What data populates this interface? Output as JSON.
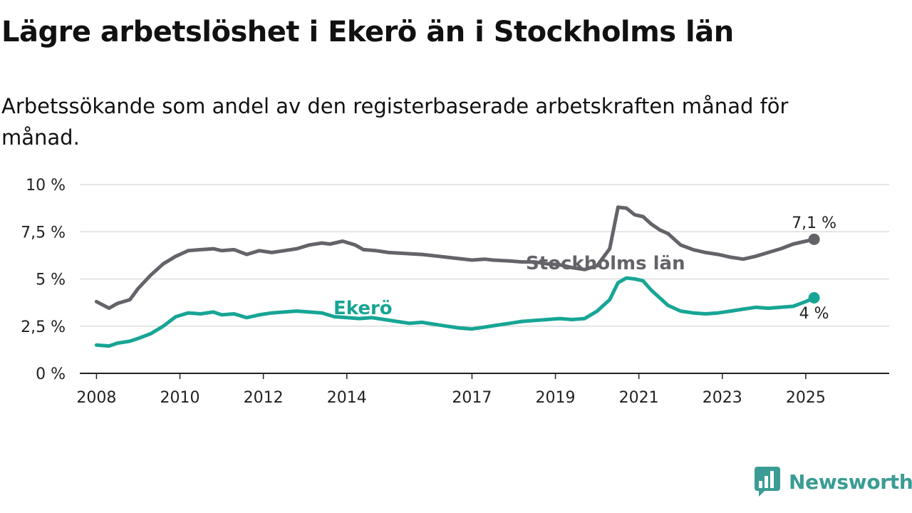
{
  "title": "Lägre arbetslöshet i Ekerö än i Stockholms län",
  "subtitle": "Arbetssökande som andel av den registerbaserade arbetskraften månad för månad.",
  "brand": {
    "name": "Newsworthy",
    "icon": "newsworthy-logo-icon",
    "color": "#3a9c94"
  },
  "chart_data": {
    "type": "line",
    "title": "Lägre arbetslöshet i Ekerö än i Stockholms län",
    "ylabel": "",
    "xlabel": "",
    "ylim": [
      0,
      10
    ],
    "xlim": [
      2007.6,
      2027.0
    ],
    "grid": true,
    "x_ticks": [
      {
        "value": 2008,
        "label": "2008"
      },
      {
        "value": 2010,
        "label": "2010"
      },
      {
        "value": 2012,
        "label": "2012"
      },
      {
        "value": 2014,
        "label": "2014"
      },
      {
        "value": 2017,
        "label": "2017"
      },
      {
        "value": 2019,
        "label": "2019"
      },
      {
        "value": 2021,
        "label": "2021"
      },
      {
        "value": 2023,
        "label": "2023"
      },
      {
        "value": 2025,
        "label": "2025"
      }
    ],
    "y_ticks": [
      {
        "value": 0,
        "label": "0 %"
      },
      {
        "value": 2.5,
        "label": "2,5 %"
      },
      {
        "value": 5,
        "label": "5 %"
      },
      {
        "value": 7.5,
        "label": "7,5 %"
      },
      {
        "value": 10,
        "label": "10 %"
      }
    ],
    "series": [
      {
        "name": "Stockholms län",
        "color": "#636369",
        "end_label": "7,1 %",
        "x": [
          2008.0,
          2008.3,
          2008.5,
          2008.8,
          2009.0,
          2009.3,
          2009.6,
          2009.9,
          2010.2,
          2010.5,
          2010.8,
          2011.0,
          2011.3,
          2011.6,
          2011.9,
          2012.2,
          2012.5,
          2012.8,
          2013.1,
          2013.4,
          2013.6,
          2013.9,
          2014.2,
          2014.4,
          2014.7,
          2015.0,
          2015.4,
          2015.8,
          2016.2,
          2016.6,
          2017.0,
          2017.3,
          2017.5,
          2017.9,
          2018.2,
          2018.5,
          2018.8,
          2019.1,
          2019.4,
          2019.7,
          2020.0,
          2020.3,
          2020.5,
          2020.7,
          2020.9,
          2021.1,
          2021.3,
          2021.5,
          2021.7,
          2022.0,
          2022.3,
          2022.6,
          2022.9,
          2023.2,
          2023.5,
          2023.8,
          2024.1,
          2024.4,
          2024.7,
          2025.0,
          2025.2
        ],
        "values": [
          3.8,
          3.45,
          3.7,
          3.9,
          4.5,
          5.2,
          5.8,
          6.2,
          6.5,
          6.55,
          6.6,
          6.5,
          6.55,
          6.3,
          6.5,
          6.4,
          6.5,
          6.6,
          6.8,
          6.9,
          6.85,
          7.0,
          6.8,
          6.55,
          6.5,
          6.4,
          6.35,
          6.3,
          6.2,
          6.1,
          6.0,
          6.05,
          6.0,
          5.95,
          5.9,
          5.9,
          5.8,
          5.75,
          5.6,
          5.5,
          5.7,
          6.6,
          8.8,
          8.75,
          8.4,
          8.3,
          7.9,
          7.6,
          7.4,
          6.8,
          6.55,
          6.4,
          6.3,
          6.15,
          6.05,
          6.2,
          6.4,
          6.6,
          6.85,
          7.0,
          7.1
        ]
      },
      {
        "name": "Ekerö",
        "color": "#17a595",
        "end_label": "4 %",
        "x": [
          2008.0,
          2008.3,
          2008.5,
          2008.8,
          2009.0,
          2009.3,
          2009.6,
          2009.9,
          2010.2,
          2010.5,
          2010.8,
          2011.0,
          2011.3,
          2011.6,
          2011.9,
          2012.2,
          2012.5,
          2012.8,
          2013.1,
          2013.4,
          2013.7,
          2014.0,
          2014.3,
          2014.6,
          2014.9,
          2015.2,
          2015.5,
          2015.8,
          2016.1,
          2016.4,
          2016.7,
          2017.0,
          2017.3,
          2017.6,
          2017.9,
          2018.2,
          2018.5,
          2018.8,
          2019.1,
          2019.4,
          2019.7,
          2020.0,
          2020.3,
          2020.5,
          2020.7,
          2020.9,
          2021.1,
          2021.3,
          2021.5,
          2021.7,
          2022.0,
          2022.3,
          2022.6,
          2022.9,
          2023.2,
          2023.5,
          2023.8,
          2024.1,
          2024.4,
          2024.7,
          2025.0,
          2025.2
        ],
        "values": [
          1.5,
          1.45,
          1.6,
          1.7,
          1.85,
          2.1,
          2.5,
          3.0,
          3.2,
          3.15,
          3.25,
          3.1,
          3.15,
          2.95,
          3.1,
          3.2,
          3.25,
          3.3,
          3.25,
          3.2,
          3.0,
          2.95,
          2.9,
          2.95,
          2.85,
          2.75,
          2.65,
          2.7,
          2.6,
          2.5,
          2.4,
          2.35,
          2.45,
          2.55,
          2.65,
          2.75,
          2.8,
          2.85,
          2.9,
          2.85,
          2.9,
          3.3,
          3.9,
          4.8,
          5.05,
          5.0,
          4.9,
          4.4,
          4.0,
          3.6,
          3.3,
          3.2,
          3.15,
          3.2,
          3.3,
          3.4,
          3.5,
          3.45,
          3.5,
          3.55,
          3.8,
          4.0
        ]
      }
    ],
    "inline_labels": [
      {
        "text": "Stockholms län",
        "series": "Stockholms län"
      },
      {
        "text": "Ekerö",
        "series": "Ekerö"
      }
    ]
  }
}
